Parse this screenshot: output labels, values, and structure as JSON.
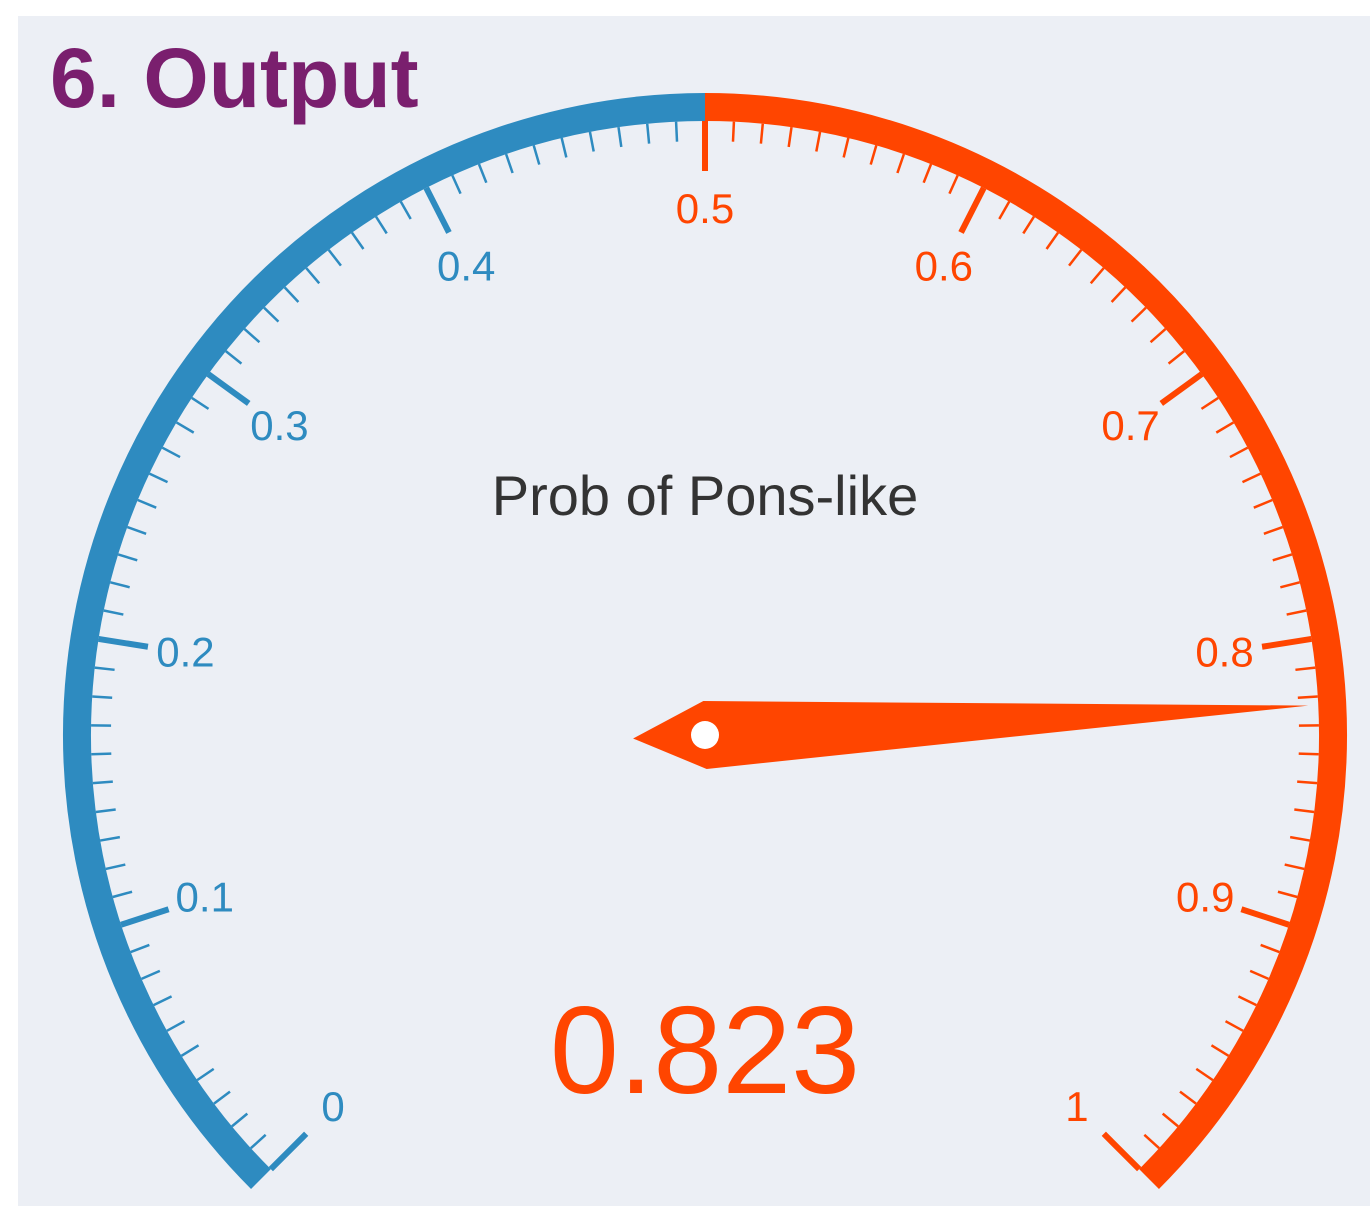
{
  "section": {
    "title": "6. Output"
  },
  "gauge": {
    "type": "gauge",
    "title": "Prob of Pons-like",
    "value": 0.823,
    "value_label": "0.823",
    "min": 0,
    "max": 1,
    "threshold": 0.5,
    "tick_labels": [
      "0",
      "0.1",
      "0.2",
      "0.3",
      "0.4",
      "0.5",
      "0.6",
      "0.7",
      "0.8",
      "0.9",
      "1"
    ],
    "colors": {
      "low": "#2e8bc0",
      "high": "#ff4500",
      "title_text": "#333333",
      "heading": "#7a1f6e",
      "background": "#eceff5",
      "needle_pivot": "#ffffff"
    }
  }
}
